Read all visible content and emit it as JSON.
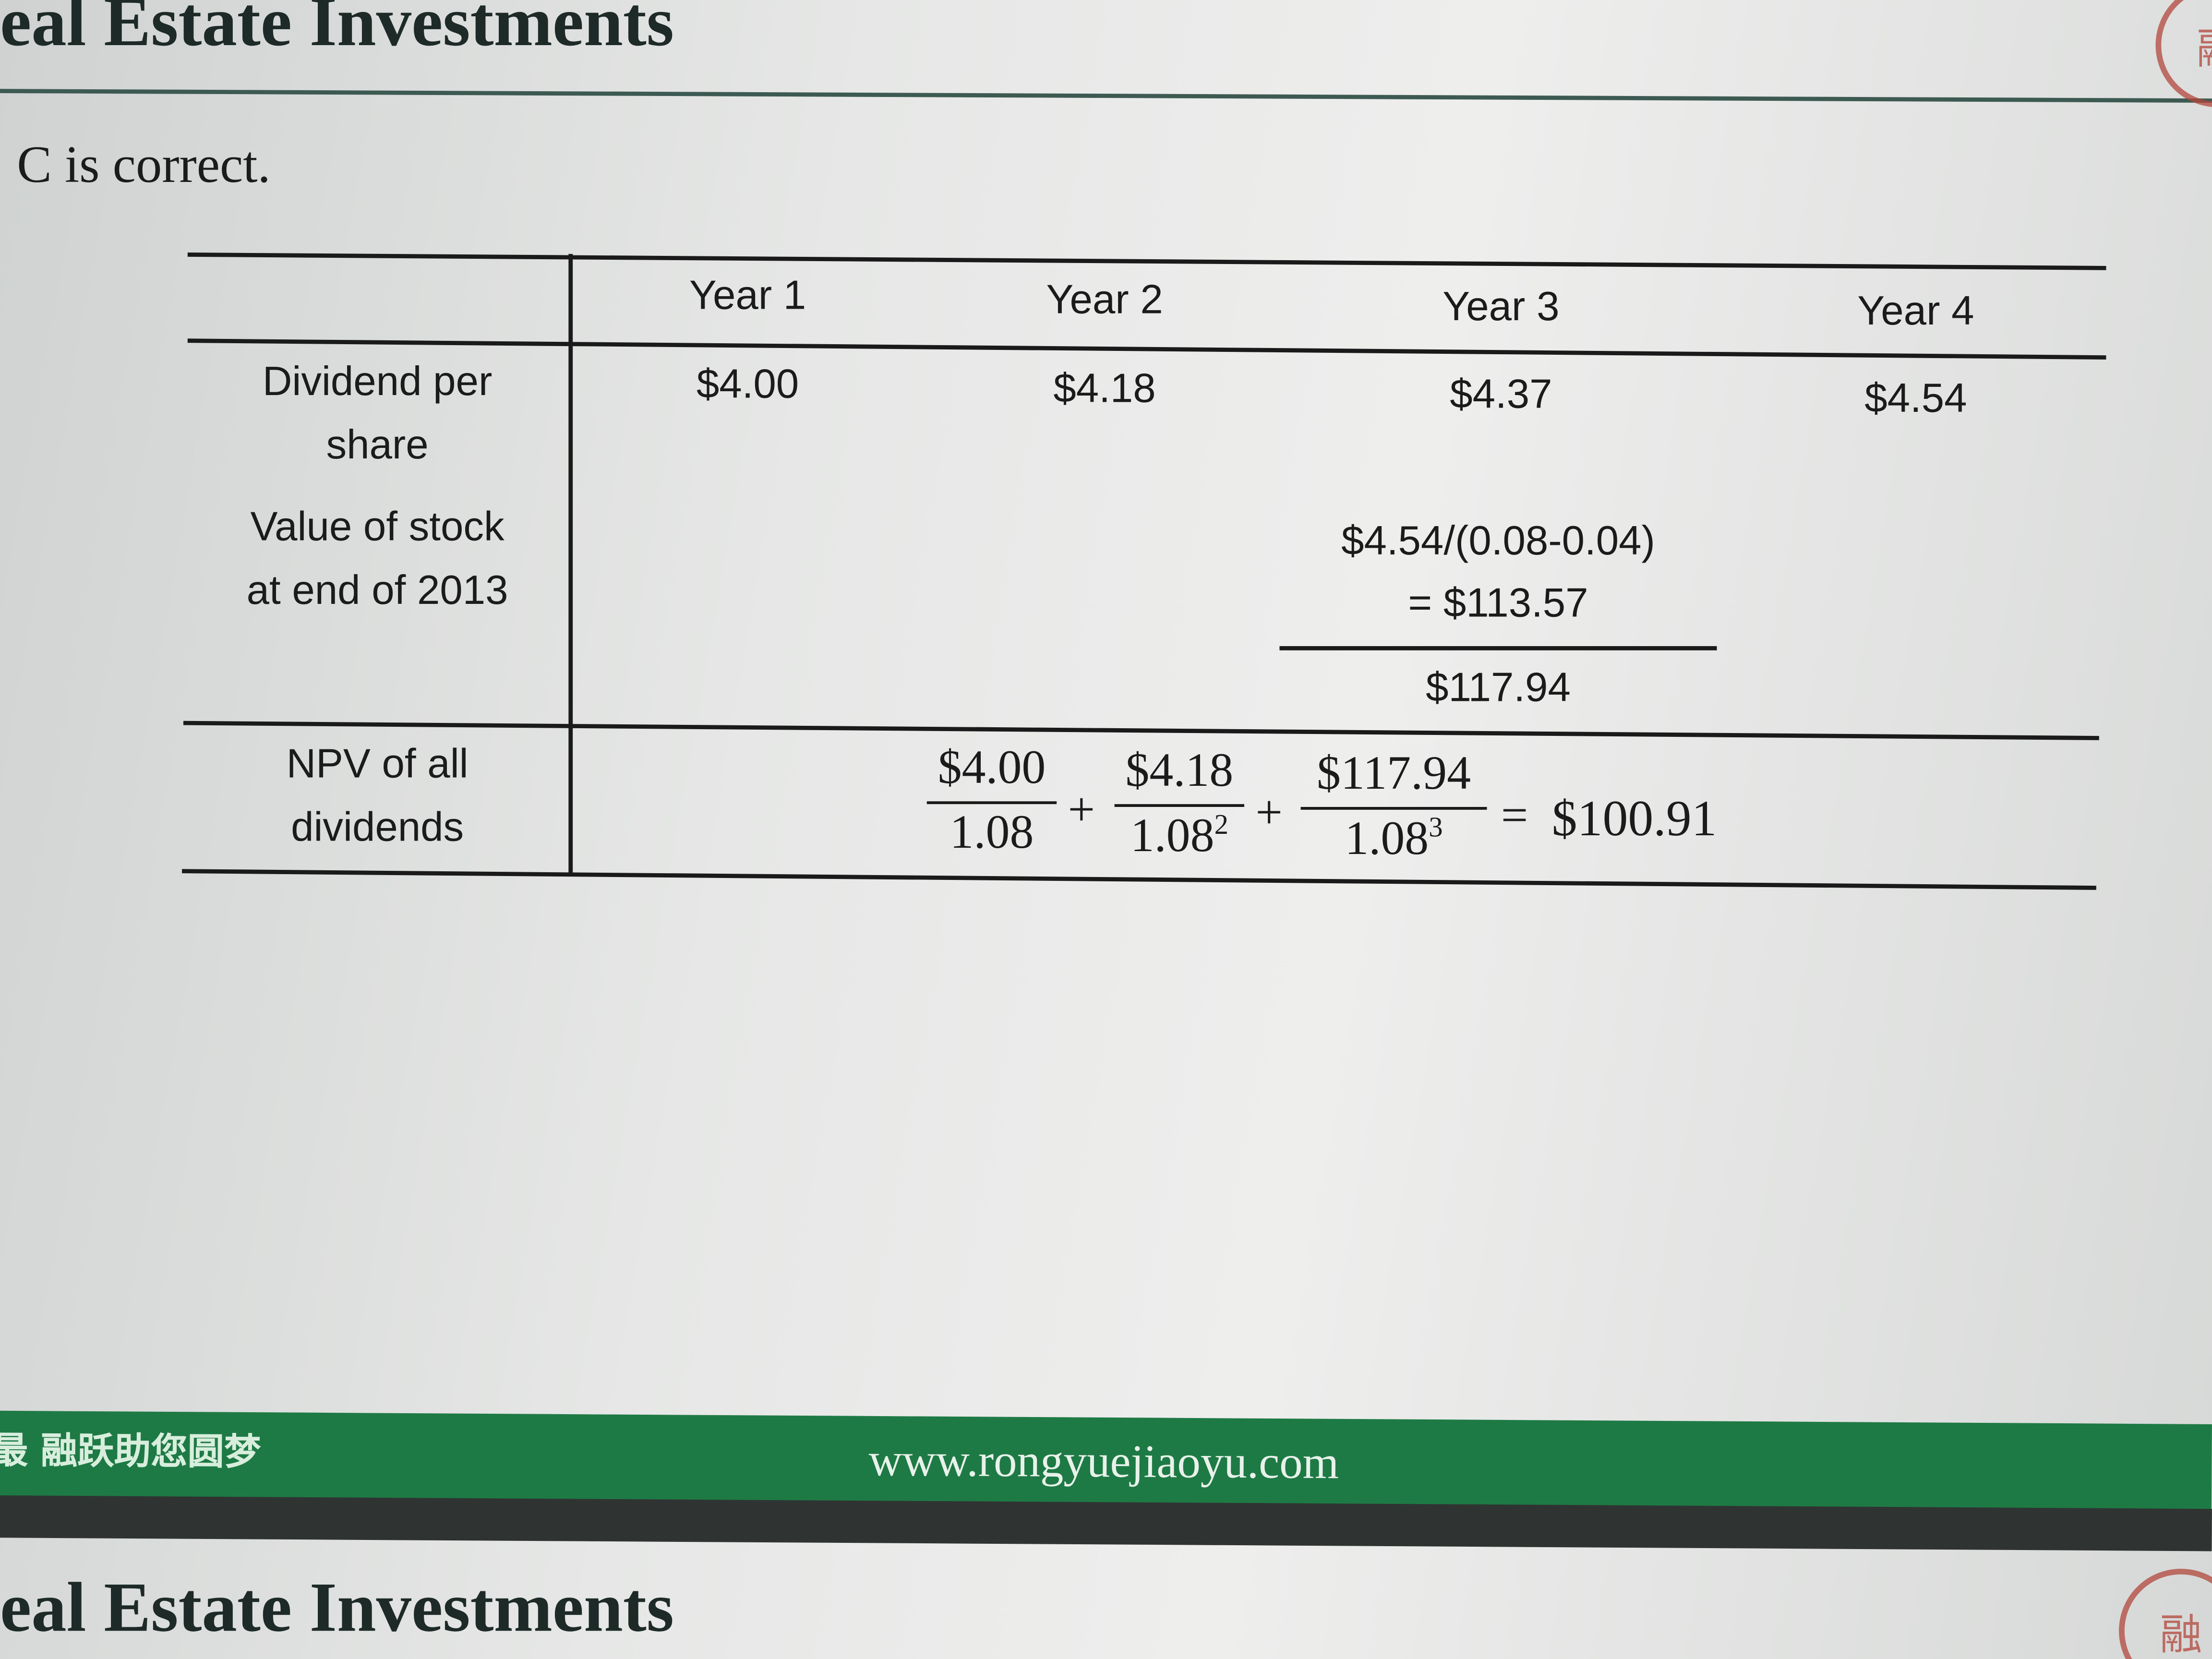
{
  "slide_title": "eal Estate Investments",
  "answer": "C is correct.",
  "table": {
    "headers": [
      "Year 1",
      "Year 2",
      "Year 3",
      "Year 4"
    ],
    "rows": {
      "dividend_label_1": "Dividend per",
      "dividend_label_2": "share",
      "dividends": [
        "$4.00",
        "$4.18",
        "$4.37",
        "$4.54"
      ],
      "value_label_1": "Value of stock",
      "value_label_2": "at end of 2013",
      "value_formula_1": "$4.54/(0.08-0.04)",
      "value_formula_2": "= $113.57",
      "value_total": "$117.94",
      "npv_label_1": "NPV of all",
      "npv_label_2": "dividends",
      "npv": {
        "num1": "$4.00",
        "den1": "1.08",
        "num2": "$4.18",
        "den2": "1.08",
        "exp2": "2",
        "num3": "$117.94",
        "den3": "1.08",
        "exp3": "3",
        "plus": "+",
        "equals": "=",
        "result": "$100.91"
      }
    }
  },
  "footer": {
    "slogan": "最 融跃助您圆梦",
    "url": "www.rongyuejiaoyu.com",
    "color": "#1e7a45"
  },
  "next_slide_title": "eal Estate Investments",
  "logo": {
    "text": "融"
  }
}
